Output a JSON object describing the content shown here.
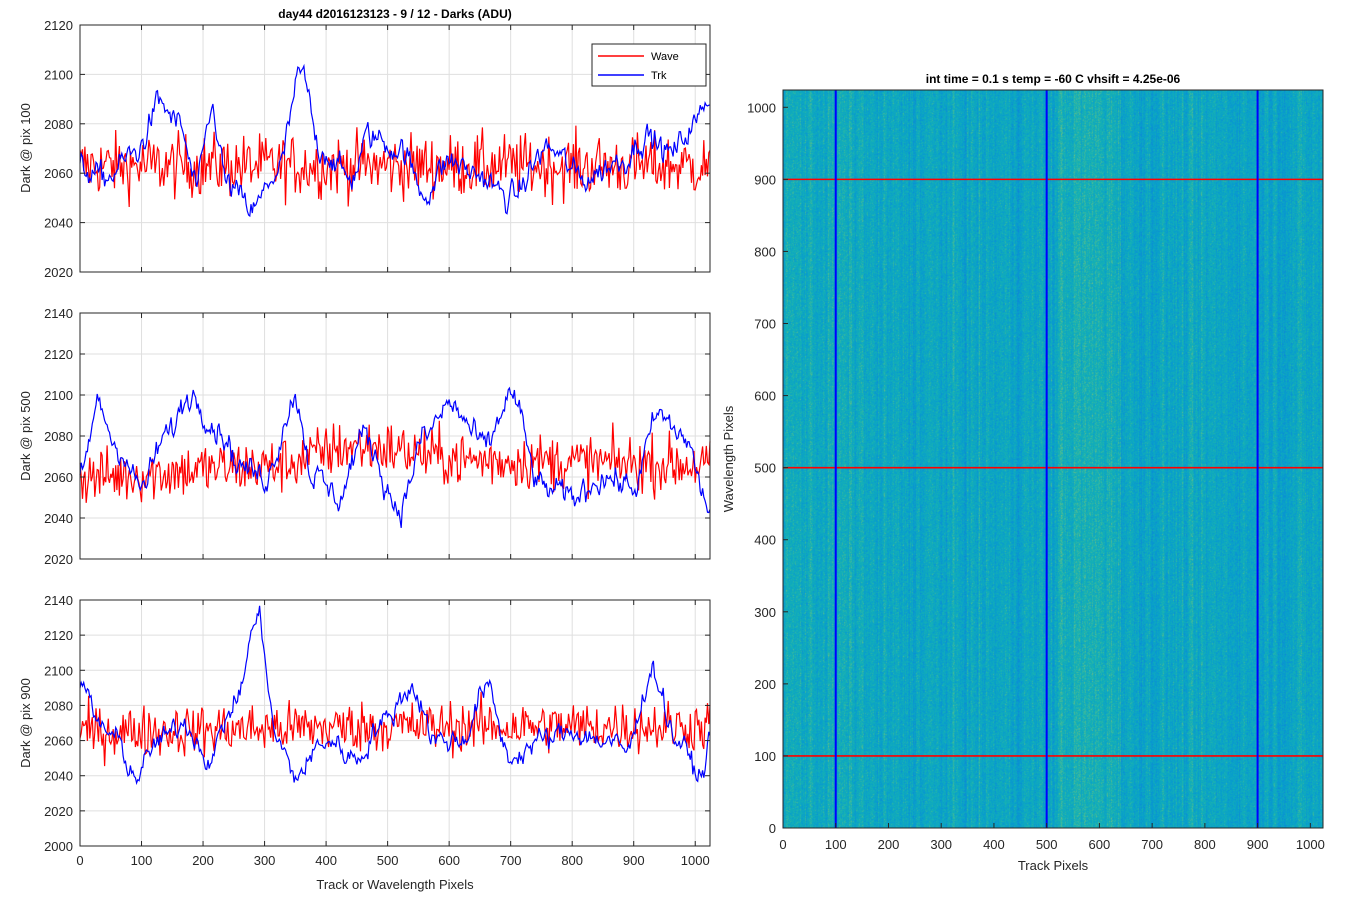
{
  "figure": {
    "left_title": "day44 d2016123123 - 9 / 12 - Darks (ADU)",
    "right_title": "int time = 0.1 s   temp = -60 C   vhsift = 4.25e-06",
    "x_label_left": "Track or Wavelength Pixels",
    "x_label_right": "Track Pixels",
    "y_label_right": "Wavelength Pixels"
  },
  "colors": {
    "wave": "#ff0000",
    "trk": "#0000ff",
    "grid": "#dfdfdf",
    "axis": "#262626"
  },
  "chart_data": [
    {
      "type": "line",
      "title": "day44 d2016123123 - 9 / 12 - Darks (ADU)",
      "ylabel": "Dark @ pix 100",
      "xlabel": "",
      "xlim": [
        0,
        1024
      ],
      "ylim": [
        2020,
        2120
      ],
      "xticks": [
        0,
        100,
        200,
        300,
        400,
        500,
        600,
        700,
        800,
        900,
        1000
      ],
      "yticks": [
        2020,
        2040,
        2060,
        2080,
        2100,
        2120
      ],
      "legend": {
        "placement": "top-right",
        "entries": [
          "Wave",
          "Trk"
        ]
      },
      "grid": true,
      "series": [
        {
          "name": "Wave",
          "mean": 2063,
          "noise": 14,
          "anchors": [
            [
              0,
              2063
            ],
            [
              1024,
              2063
            ]
          ]
        },
        {
          "name": "Trk",
          "mean": 2062,
          "noise": 5,
          "anchors": [
            [
              0,
              2062
            ],
            [
              40,
              2058
            ],
            [
              90,
              2068
            ],
            [
              130,
              2088
            ],
            [
              160,
              2080
            ],
            [
              190,
              2055
            ],
            [
              215,
              2085
            ],
            [
              240,
              2055
            ],
            [
              280,
              2045
            ],
            [
              320,
              2060
            ],
            [
              360,
              2100
            ],
            [
              390,
              2070
            ],
            [
              440,
              2058
            ],
            [
              470,
              2075
            ],
            [
              520,
              2070
            ],
            [
              560,
              2052
            ],
            [
              600,
              2065
            ],
            [
              640,
              2060
            ],
            [
              700,
              2050
            ],
            [
              760,
              2070
            ],
            [
              820,
              2058
            ],
            [
              880,
              2065
            ],
            [
              920,
              2075
            ],
            [
              960,
              2068
            ],
            [
              1000,
              2080
            ],
            [
              1024,
              2092
            ]
          ]
        }
      ]
    },
    {
      "type": "line",
      "title": "",
      "ylabel": "Dark @ pix 500",
      "xlabel": "",
      "xlim": [
        0,
        1024
      ],
      "ylim": [
        2020,
        2140
      ],
      "xticks": [
        0,
        100,
        200,
        300,
        400,
        500,
        600,
        700,
        800,
        900,
        1000
      ],
      "yticks": [
        2020,
        2040,
        2060,
        2080,
        2100,
        2120,
        2140
      ],
      "grid": true,
      "series": [
        {
          "name": "Wave",
          "mean": 2064,
          "noise": 15,
          "anchors": [
            [
              0,
              2060
            ],
            [
              300,
              2065
            ],
            [
              450,
              2075
            ],
            [
              650,
              2068
            ],
            [
              1024,
              2066
            ]
          ]
        },
        {
          "name": "Trk",
          "mean": 2065,
          "noise": 6,
          "anchors": [
            [
              0,
              2060
            ],
            [
              30,
              2095
            ],
            [
              60,
              2075
            ],
            [
              100,
              2055
            ],
            [
              140,
              2080
            ],
            [
              180,
              2100
            ],
            [
              230,
              2082
            ],
            [
              260,
              2065
            ],
            [
              300,
              2060
            ],
            [
              350,
              2098
            ],
            [
              380,
              2060
            ],
            [
              420,
              2050
            ],
            [
              460,
              2080
            ],
            [
              520,
              2045
            ],
            [
              560,
              2080
            ],
            [
              600,
              2095
            ],
            [
              660,
              2075
            ],
            [
              700,
              2100
            ],
            [
              750,
              2055
            ],
            [
              800,
              2050
            ],
            [
              850,
              2060
            ],
            [
              900,
              2055
            ],
            [
              940,
              2090
            ],
            [
              980,
              2080
            ],
            [
              1024,
              2045
            ]
          ]
        }
      ]
    },
    {
      "type": "line",
      "title": "",
      "ylabel": "Dark @ pix 900",
      "xlabel": "Track or Wavelength Pixels",
      "xlim": [
        0,
        1024
      ],
      "ylim": [
        2000,
        2140
      ],
      "xticks": [
        0,
        100,
        200,
        300,
        400,
        500,
        600,
        700,
        800,
        900,
        1000
      ],
      "yticks": [
        2000,
        2020,
        2040,
        2060,
        2080,
        2100,
        2120,
        2140
      ],
      "grid": true,
      "series": [
        {
          "name": "Wave",
          "mean": 2068,
          "noise": 16,
          "anchors": [
            [
              0,
              2065
            ],
            [
              512,
              2068
            ],
            [
              1024,
              2068
            ]
          ]
        },
        {
          "name": "Trk",
          "mean": 2062,
          "noise": 6,
          "anchors": [
            [
              0,
              2095
            ],
            [
              30,
              2070
            ],
            [
              60,
              2060
            ],
            [
              90,
              2040
            ],
            [
              130,
              2060
            ],
            [
              170,
              2070
            ],
            [
              210,
              2050
            ],
            [
              250,
              2080
            ],
            [
              290,
              2130
            ],
            [
              320,
              2060
            ],
            [
              350,
              2040
            ],
            [
              400,
              2060
            ],
            [
              450,
              2050
            ],
            [
              490,
              2070
            ],
            [
              540,
              2090
            ],
            [
              580,
              2060
            ],
            [
              620,
              2060
            ],
            [
              660,
              2090
            ],
            [
              700,
              2050
            ],
            [
              750,
              2060
            ],
            [
              800,
              2065
            ],
            [
              850,
              2060
            ],
            [
              890,
              2055
            ],
            [
              930,
              2100
            ],
            [
              970,
              2060
            ],
            [
              1010,
              2040
            ],
            [
              1024,
              2060
            ]
          ]
        }
      ]
    },
    {
      "type": "heatmap",
      "title": "int time = 0.1 s   temp = -60 C   vhsift = 4.25e-06",
      "xlabel": "Track Pixels",
      "ylabel": "Wavelength Pixels",
      "xlim": [
        0,
        1024
      ],
      "ylim": [
        0,
        1024
      ],
      "xticks": [
        0,
        100,
        200,
        300,
        400,
        500,
        600,
        700,
        800,
        900,
        1000
      ],
      "yticks": [
        0,
        100,
        200,
        300,
        400,
        500,
        600,
        700,
        800,
        900,
        1000
      ],
      "colormap": "parula",
      "marker_columns": [
        100,
        500,
        900
      ],
      "marker_rows": [
        100,
        500,
        900
      ],
      "column_color": "#0000ff",
      "row_color": "#ff0000"
    }
  ]
}
